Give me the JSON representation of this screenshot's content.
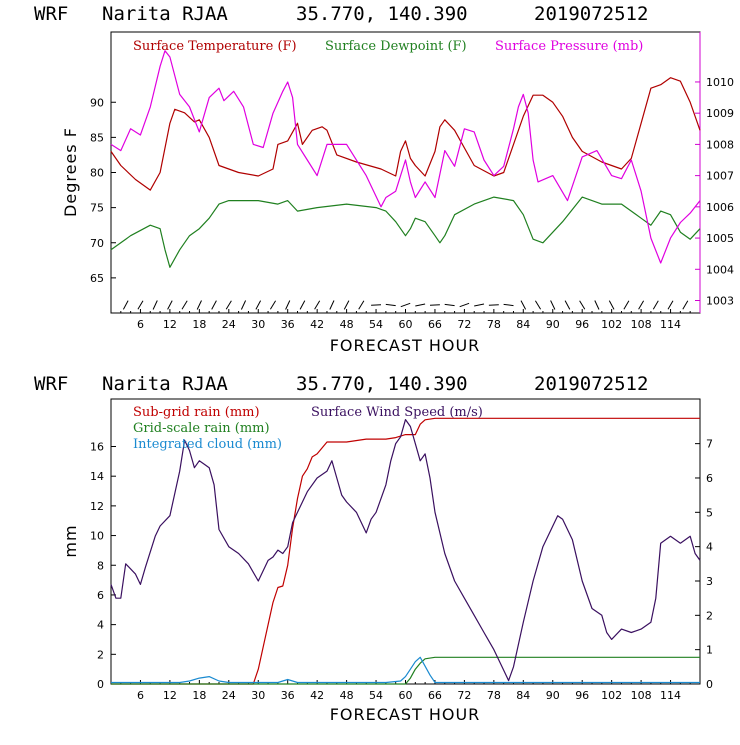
{
  "header": {
    "model": "WRF",
    "station": "Narita RJAA",
    "coords": "35.770, 140.390",
    "init_time": "2019072512"
  },
  "colors": {
    "temperature": "#b00000",
    "dewpoint": "#208020",
    "pressure": "#e000e0",
    "subgrid_rain": "#c00000",
    "gridscale_rain": "#208020",
    "cloud": "#1a8ad0",
    "wind": "#3a1060",
    "pressure_axis": "#d000d0"
  },
  "chart_data": [
    {
      "type": "line",
      "title": "WRF  Narita RJAA  35.770, 140.390  2019072512",
      "xlabel": "FORECAST HOUR",
      "ylabel": "Degrees F",
      "xlim": [
        0,
        120
      ],
      "ylim": [
        60,
        100
      ],
      "y2lim": [
        1002.6,
        1011.6
      ],
      "xticks": [
        6,
        12,
        18,
        24,
        30,
        36,
        42,
        48,
        54,
        60,
        66,
        72,
        78,
        84,
        90,
        96,
        102,
        108,
        114
      ],
      "xtick_labels": [
        "6",
        "12",
        "18",
        "24",
        "30",
        "36",
        "42",
        "48",
        "54",
        "60",
        "66",
        "72",
        "78",
        "84",
        "90",
        "96",
        "102",
        "108",
        "114"
      ],
      "yticks": [
        65,
        70,
        75,
        80,
        85,
        90
      ],
      "ytick_labels": [
        "65",
        "70",
        "75",
        "80",
        "85",
        "90"
      ],
      "y2ticks": [
        1003,
        1004,
        1005,
        1006,
        1007,
        1008,
        1009,
        1010
      ],
      "y2tick_labels": [
        "1003",
        "1004",
        "1005",
        "1006",
        "1007",
        "1008",
        "1009",
        "1010"
      ],
      "legend": [
        "Surface Temperature (F)",
        "Surface Dewpoint (F)",
        "Surface Pressure (mb)"
      ],
      "series": [
        {
          "name": "Surface Temperature (F)",
          "axis": "left",
          "x": [
            0,
            2,
            5,
            8,
            10,
            12,
            13,
            15,
            17,
            18,
            20,
            22,
            26,
            30,
            33,
            34,
            36,
            38,
            39,
            41,
            43,
            44,
            46,
            50,
            55,
            58,
            59,
            60,
            61,
            62,
            64,
            66,
            67,
            68,
            70,
            74,
            78,
            80,
            82,
            84,
            86,
            88,
            90,
            92,
            94,
            96,
            100,
            104,
            106,
            108,
            110,
            112,
            114,
            116,
            118,
            120
          ],
          "values": [
            83,
            81,
            79,
            77.5,
            80,
            87,
            89,
            88.5,
            87.2,
            87.5,
            85,
            81,
            80,
            79.5,
            80.5,
            84,
            84.5,
            87,
            84,
            86,
            86.5,
            86,
            82.5,
            81.5,
            80.5,
            79.5,
            83,
            84.5,
            82,
            81,
            79.5,
            83,
            86.5,
            87.5,
            86,
            81,
            79.5,
            80,
            84,
            88,
            91,
            91,
            90,
            88,
            85,
            83,
            81.5,
            80.5,
            82,
            87,
            92,
            92.5,
            93.5,
            93,
            90,
            86
          ]
        },
        {
          "name": "Surface Dewpoint (F)",
          "axis": "left",
          "x": [
            0,
            2,
            4,
            8,
            10,
            11,
            12,
            14,
            16,
            18,
            20,
            22,
            24,
            26,
            30,
            34,
            36,
            38,
            42,
            48,
            54,
            56,
            58,
            60,
            61,
            62,
            64,
            66,
            67,
            68,
            70,
            74,
            78,
            82,
            84,
            86,
            88,
            92,
            96,
            100,
            104,
            106,
            108,
            110,
            112,
            114,
            116,
            118,
            120
          ],
          "values": [
            69,
            70,
            71,
            72.5,
            72,
            69,
            66.5,
            69,
            71,
            72,
            73.5,
            75.5,
            76,
            76,
            76,
            75.5,
            76,
            74.5,
            75,
            75.5,
            75,
            74.5,
            73,
            71,
            72,
            73.5,
            73,
            71,
            70,
            71,
            74,
            75.5,
            76.5,
            76,
            74,
            70.5,
            70,
            73,
            76.5,
            75.5,
            75.5,
            74.5,
            73.5,
            72.5,
            74.5,
            74,
            71.5,
            70.5,
            72
          ]
        },
        {
          "name": "Surface Pressure (mb)",
          "axis": "right",
          "x": [
            0,
            2,
            4,
            6,
            8,
            10,
            11,
            12,
            14,
            16,
            18,
            20,
            22,
            23,
            25,
            27,
            29,
            31,
            33,
            35,
            36,
            37,
            38,
            40,
            42,
            44,
            48,
            52,
            55,
            56,
            58,
            59,
            60,
            61,
            62,
            64,
            66,
            68,
            70,
            72,
            74,
            76,
            78,
            80,
            82,
            83,
            84,
            85,
            86,
            87,
            90,
            93,
            96,
            99,
            102,
            104,
            106,
            108,
            110,
            112,
            114,
            116,
            118,
            120
          ],
          "values": [
            1008,
            1007.8,
            1008.5,
            1008.3,
            1009.2,
            1010.5,
            1011.0,
            1010.8,
            1009.6,
            1009.2,
            1008.4,
            1009.5,
            1009.8,
            1009.4,
            1009.7,
            1009.2,
            1008.0,
            1007.9,
            1009.0,
            1009.7,
            1010.0,
            1009.5,
            1008.0,
            1007.5,
            1007.0,
            1008.0,
            1008.0,
            1007.0,
            1006.0,
            1006.3,
            1006.5,
            1007.0,
            1007.5,
            1006.8,
            1006.3,
            1006.8,
            1006.3,
            1007.8,
            1007.3,
            1008.5,
            1008.4,
            1007.5,
            1007.0,
            1007.3,
            1008.5,
            1009.2,
            1009.6,
            1009.0,
            1007.5,
            1006.8,
            1007.0,
            1006.2,
            1007.6,
            1007.8,
            1007.0,
            1006.9,
            1007.5,
            1006.5,
            1005.0,
            1004.2,
            1005.0,
            1005.5,
            1005.8,
            1006.2
          ]
        }
      ]
    },
    {
      "type": "line",
      "title": "WRF  Narita RJAA  35.770, 140.390  2019072512",
      "xlabel": "FORECAST HOUR",
      "ylabel": "mm",
      "xlim": [
        0,
        120
      ],
      "ylim": [
        0,
        19.2
      ],
      "y2lim": [
        0,
        8.3
      ],
      "xticks": [
        6,
        12,
        18,
        24,
        30,
        36,
        42,
        48,
        54,
        60,
        66,
        72,
        78,
        84,
        90,
        96,
        102,
        108,
        114
      ],
      "xtick_labels": [
        "6",
        "12",
        "18",
        "24",
        "30",
        "36",
        "42",
        "48",
        "54",
        "60",
        "66",
        "72",
        "78",
        "84",
        "90",
        "96",
        "102",
        "108",
        "114"
      ],
      "yticks": [
        0,
        2,
        4,
        6,
        8,
        10,
        12,
        14,
        16
      ],
      "ytick_labels": [
        "0",
        "2",
        "4",
        "6",
        "8",
        "10",
        "12",
        "14",
        "16"
      ],
      "y2ticks": [
        0,
        1,
        2,
        3,
        4,
        5,
        6,
        7
      ],
      "y2tick_labels": [
        "0",
        "1",
        "2",
        "3",
        "4",
        "5",
        "6",
        "7"
      ],
      "legend": [
        "Sub-grid rain (mm)",
        "Grid-scale rain (mm)",
        "Integrated cloud (mm)",
        "Surface Wind Speed (m/s)"
      ],
      "series": [
        {
          "name": "Sub-grid rain (mm)",
          "axis": "left",
          "x": [
            0,
            29,
            30,
            31,
            32,
            33,
            34,
            35,
            36,
            37,
            38,
            39,
            40,
            41,
            42,
            44,
            48,
            52,
            56,
            58,
            60,
            62,
            63,
            64,
            66,
            120
          ],
          "values": [
            0,
            0,
            1,
            2.5,
            4,
            5.5,
            6.5,
            6.6,
            8,
            10.5,
            12.5,
            14,
            14.5,
            15.3,
            15.5,
            16.3,
            16.3,
            16.5,
            16.5,
            16.6,
            16.8,
            16.8,
            17.5,
            17.8,
            17.9,
            17.9
          ]
        },
        {
          "name": "Grid-scale rain (mm)",
          "axis": "left",
          "x": [
            0,
            60,
            61,
            62,
            63,
            64,
            66,
            120
          ],
          "values": [
            0,
            0,
            0.4,
            1.0,
            1.4,
            1.7,
            1.8,
            1.8
          ]
        },
        {
          "name": "Integrated cloud (mm)",
          "axis": "left",
          "x": [
            0,
            14,
            16,
            18,
            20,
            22,
            24,
            34,
            36,
            38,
            40,
            56,
            59,
            60,
            61,
            62,
            63,
            64,
            65,
            66,
            120
          ],
          "values": [
            0.1,
            0.1,
            0.2,
            0.4,
            0.5,
            0.2,
            0.1,
            0.1,
            0.3,
            0.1,
            0.1,
            0.1,
            0.2,
            0.5,
            1.0,
            1.5,
            1.8,
            1.2,
            0.6,
            0.1,
            0.1
          ]
        },
        {
          "name": "Surface Wind Speed (m/s)",
          "axis": "right",
          "x": [
            0,
            1,
            2,
            3,
            5,
            6,
            7,
            9,
            10,
            12,
            14,
            15,
            16,
            17,
            18,
            19,
            20,
            21,
            22,
            24,
            26,
            28,
            30,
            32,
            33,
            34,
            35,
            36,
            37,
            38,
            40,
            42,
            44,
            45,
            46,
            47,
            48,
            50,
            52,
            53,
            54,
            56,
            57,
            58,
            59,
            60,
            61,
            62,
            63,
            64,
            65,
            66,
            68,
            70,
            72,
            74,
            76,
            78,
            80,
            81,
            82,
            84,
            86,
            88,
            90,
            91,
            92,
            94,
            96,
            98,
            100,
            101,
            102,
            104,
            106,
            108,
            110,
            111,
            112,
            114,
            116,
            118,
            119,
            120
          ],
          "values": [
            2.9,
            2.5,
            2.5,
            3.5,
            3.2,
            2.9,
            3.4,
            4.3,
            4.6,
            4.9,
            6.2,
            7.1,
            6.8,
            6.3,
            6.5,
            6.4,
            6.3,
            5.8,
            4.5,
            4.0,
            3.8,
            3.5,
            3.0,
            3.6,
            3.7,
            3.9,
            3.8,
            4.0,
            4.7,
            5.0,
            5.6,
            6.0,
            6.2,
            6.5,
            6.0,
            5.5,
            5.3,
            5.0,
            4.4,
            4.8,
            5.0,
            5.8,
            6.5,
            7.0,
            7.2,
            7.7,
            7.5,
            7.0,
            6.5,
            6.7,
            6.0,
            5.0,
            3.8,
            3.0,
            2.5,
            2.0,
            1.5,
            1.0,
            0.4,
            0.1,
            0.5,
            1.8,
            3.0,
            4.0,
            4.6,
            4.9,
            4.8,
            4.2,
            3.0,
            2.2,
            2.0,
            1.5,
            1.3,
            1.6,
            1.5,
            1.6,
            1.8,
            2.5,
            4.1,
            4.3,
            4.1,
            4.3,
            3.8,
            3.6
          ]
        }
      ]
    }
  ]
}
